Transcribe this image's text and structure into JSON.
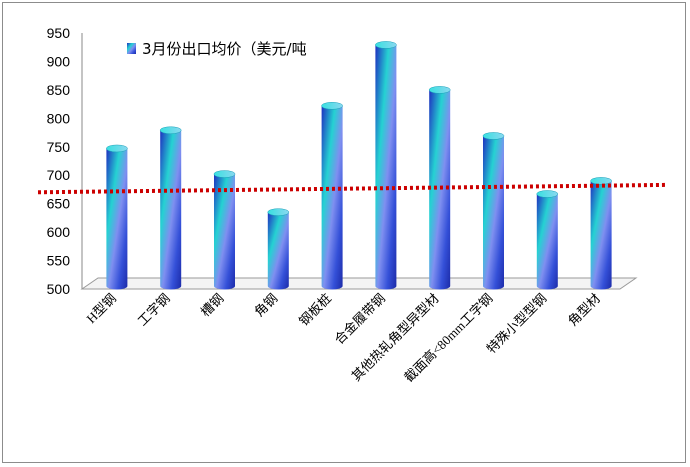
{
  "chart_data": {
    "type": "bar",
    "categories": [
      "H型钢",
      "工字钢",
      "槽钢",
      "角钢",
      "钢板桩",
      "合金履带钢",
      "其他热轧角型异型材",
      "截面高<80mm工字钢",
      "特殊小型型钢",
      "角型材"
    ],
    "series": [
      {
        "name": "3月份出口均价（美元/吨",
        "values": [
          740,
          772,
          695,
          628,
          815,
          922,
          843,
          762,
          660,
          683
        ]
      }
    ],
    "ylim": [
      500,
      950
    ],
    "yticks": [
      500,
      550,
      600,
      650,
      700,
      750,
      800,
      850,
      900,
      950
    ],
    "trendline": {
      "start": 670,
      "end": 683,
      "color": "#cc0000",
      "style": "dotted"
    },
    "bar_color": "#2a4fd6",
    "bar_highlight": "#22d3d3",
    "grid": false,
    "legend_position": "top-left"
  }
}
